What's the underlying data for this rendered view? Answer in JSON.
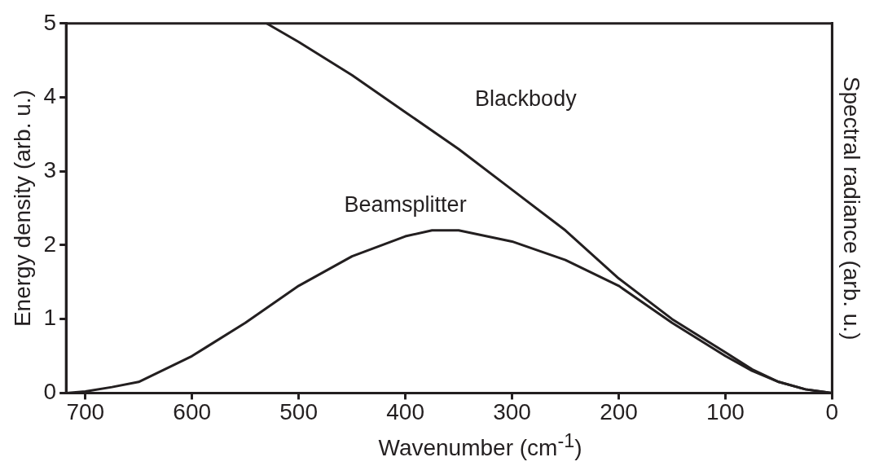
{
  "chart_data": {
    "type": "line",
    "xlabel": "Wavenumber (cm$^{-1}$)",
    "ylabel": "Energy density (arb. u.)",
    "y2label": "Spectral radiance (arb. u.)",
    "xlim": [
      718,
      0
    ],
    "xticks": [
      700,
      600,
      500,
      400,
      300,
      200,
      100,
      0
    ],
    "ylim": [
      0,
      5
    ],
    "yticks": [
      0,
      1,
      2,
      3,
      4,
      5
    ],
    "grid": false,
    "legend": false,
    "marker": "none",
    "line_style": "solid",
    "series": [
      {
        "name": "Blackbody",
        "color": "#231f20",
        "x": [
          530,
          500,
          450,
          400,
          350,
          300,
          250,
          200,
          150,
          100,
          75,
          50,
          25,
          0
        ],
        "values": [
          5,
          4.75,
          4.3,
          3.8,
          3.3,
          2.75,
          2.2,
          1.55,
          1.0,
          0.55,
          0.32,
          0.15,
          0.05,
          0
        ]
      },
      {
        "name": "Beamsplitter",
        "color": "#231f20",
        "x": [
          718,
          700,
          675,
          650,
          600,
          550,
          500,
          450,
          400,
          375,
          350,
          300,
          250,
          200,
          150,
          100,
          75,
          50,
          25,
          0
        ],
        "values": [
          0,
          0.02,
          0.08,
          0.15,
          0.5,
          0.95,
          1.45,
          1.85,
          2.12,
          2.2,
          2.2,
          2.05,
          1.8,
          1.45,
          0.95,
          0.5,
          0.3,
          0.15,
          0.05,
          0
        ]
      }
    ]
  }
}
